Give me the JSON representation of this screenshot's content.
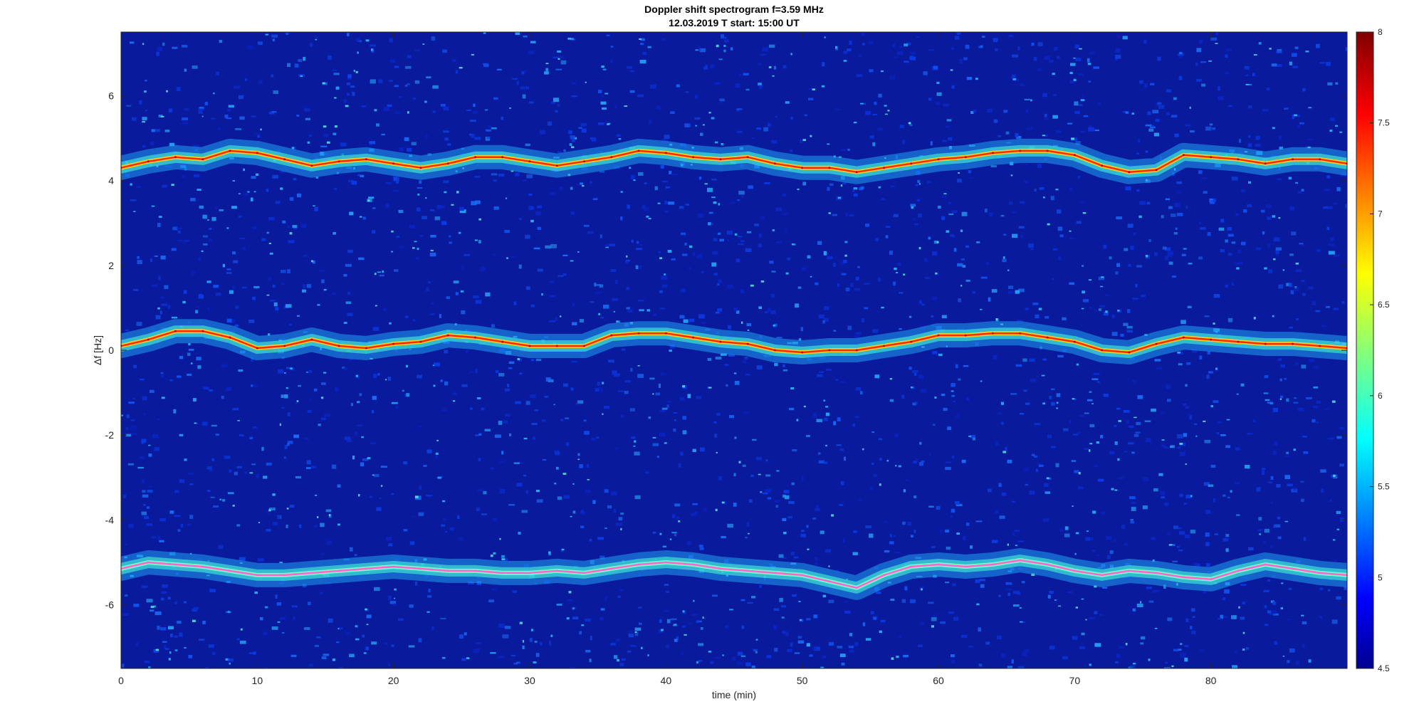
{
  "title": "Doppler shift spectrogram f=3.59 MHz",
  "subtitle": "12.03.2019   T start: 15:00 UT",
  "chart_data": {
    "type": "heatmap",
    "title": "Doppler shift spectrogram f=3.59 MHz",
    "subtitle": "12.03.2019   T start: 15:00 UT",
    "xlabel": "time (min)",
    "ylabel": "Δf [Hz]",
    "xlim": [
      0,
      90
    ],
    "ylim": [
      -7.5,
      7.5
    ],
    "x_ticks": [
      0,
      10,
      20,
      30,
      40,
      50,
      60,
      70,
      80
    ],
    "y_ticks": [
      -6,
      -4,
      -2,
      0,
      2,
      4,
      6
    ],
    "colorbar": {
      "colormap": "jet",
      "clim": [
        4.5,
        8
      ],
      "ticks": [
        4.5,
        5,
        5.5,
        6,
        6.5,
        7,
        7.5,
        8
      ]
    },
    "series": [
      {
        "x": [
          0,
          2,
          4,
          6,
          8,
          10,
          12,
          14,
          16,
          18,
          20,
          22,
          24,
          26,
          28,
          30,
          32,
          34,
          36,
          38,
          40,
          42,
          44,
          46,
          48,
          50,
          52,
          54,
          56,
          58,
          60,
          62,
          64,
          66,
          68,
          70,
          72,
          74,
          76,
          78,
          80,
          82,
          84,
          86,
          88,
          90
        ],
        "y": [
          4.3,
          4.45,
          4.55,
          4.5,
          4.7,
          4.65,
          4.5,
          4.35,
          4.45,
          4.5,
          4.4,
          4.3,
          4.4,
          4.55,
          4.55,
          4.45,
          4.35,
          4.45,
          4.55,
          4.7,
          4.65,
          4.55,
          4.5,
          4.55,
          4.4,
          4.3,
          4.3,
          4.2,
          4.3,
          4.4,
          4.5,
          4.55,
          4.65,
          4.7,
          4.7,
          4.6,
          4.35,
          4.2,
          4.25,
          4.6,
          4.55,
          4.5,
          4.4,
          4.5,
          4.5,
          4.4
        ]
      },
      {
        "x": [
          0,
          2,
          4,
          6,
          8,
          10,
          12,
          14,
          16,
          18,
          20,
          22,
          24,
          26,
          28,
          30,
          32,
          34,
          36,
          38,
          40,
          42,
          44,
          46,
          48,
          50,
          52,
          54,
          56,
          58,
          60,
          62,
          64,
          66,
          68,
          70,
          72,
          74,
          76,
          78,
          80,
          82,
          84,
          86,
          88,
          90
        ],
        "y": [
          0.1,
          0.25,
          0.45,
          0.45,
          0.3,
          0.05,
          0.1,
          0.25,
          0.1,
          0.05,
          0.15,
          0.2,
          0.35,
          0.3,
          0.2,
          0.1,
          0.1,
          0.1,
          0.35,
          0.4,
          0.4,
          0.3,
          0.2,
          0.15,
          0.0,
          -0.05,
          0.0,
          0.0,
          0.1,
          0.2,
          0.35,
          0.35,
          0.4,
          0.4,
          0.3,
          0.2,
          0.0,
          -0.05,
          0.15,
          0.3,
          0.25,
          0.2,
          0.15,
          0.15,
          0.1,
          0.05
        ]
      },
      {
        "x": [
          0,
          2,
          4,
          6,
          8,
          10,
          12,
          14,
          16,
          18,
          20,
          22,
          24,
          26,
          28,
          30,
          32,
          34,
          36,
          38,
          40,
          42,
          44,
          46,
          48,
          50,
          52,
          54,
          56,
          58,
          60,
          62,
          64,
          66,
          68,
          70,
          72,
          74,
          76,
          78,
          80,
          82,
          84,
          86,
          88,
          90
        ],
        "y": [
          -5.15,
          -5.0,
          -5.05,
          -5.1,
          -5.2,
          -5.3,
          -5.3,
          -5.25,
          -5.2,
          -5.15,
          -5.1,
          -5.15,
          -5.2,
          -5.2,
          -5.25,
          -5.25,
          -5.2,
          -5.25,
          -5.15,
          -5.05,
          -5.0,
          -5.05,
          -5.15,
          -5.2,
          -5.25,
          -5.3,
          -5.45,
          -5.6,
          -5.3,
          -5.1,
          -5.05,
          -5.1,
          -5.05,
          -4.95,
          -5.05,
          -5.2,
          -5.3,
          -5.2,
          -5.25,
          -5.35,
          -5.4,
          -5.2,
          -5.05,
          -5.15,
          -5.25,
          -5.3
        ]
      }
    ]
  }
}
